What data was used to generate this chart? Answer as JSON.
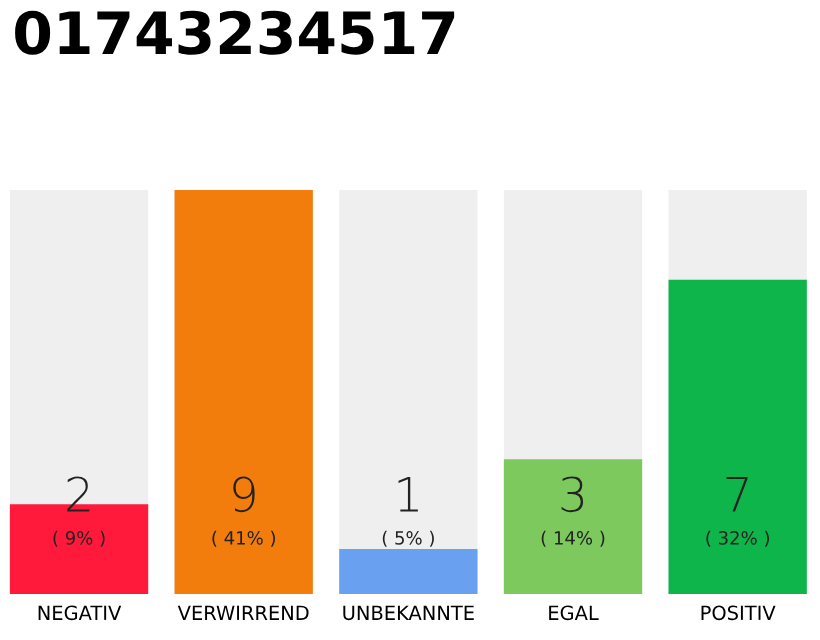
{
  "chart_data": {
    "type": "bar",
    "title": "01743234517",
    "categories": [
      "NEGATIV",
      "VERWIRREND",
      "UNBEKANNTE",
      "EGAL",
      "POSITIV"
    ],
    "values": [
      2,
      9,
      1,
      3,
      7
    ],
    "colors": [
      "#ff1a3c",
      "#f27d0c",
      "#6aa0f0",
      "#7dc95e",
      "#0db54a"
    ],
    "data_labels": true,
    "annotations": [
      "( 9% )",
      "( 41% )",
      "( 5% )",
      "( 14% )",
      "( 32% )"
    ],
    "grid": false
  }
}
